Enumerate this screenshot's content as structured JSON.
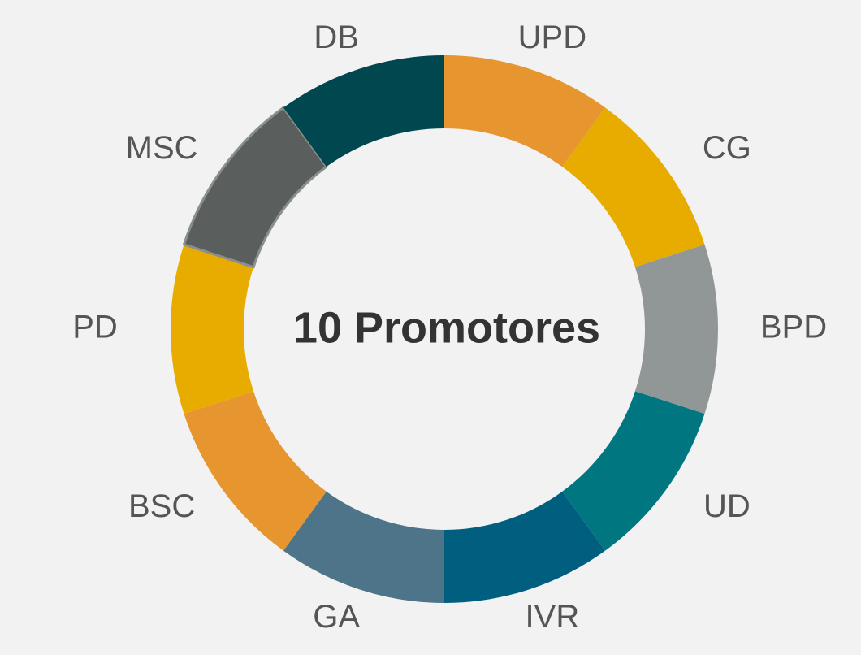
{
  "chart_data": {
    "type": "donut",
    "title": "10 Promotores",
    "categories": [
      "UPD",
      "CG",
      "BPD",
      "UD",
      "IVR",
      "GA",
      "BSC",
      "PD",
      "MSC",
      "DB"
    ],
    "values": [
      1,
      1,
      1,
      1,
      1,
      1,
      1,
      1,
      1,
      1
    ],
    "colors": [
      "#e6952f",
      "#e8ac00",
      "#919797",
      "#007780",
      "#005e7f",
      "#4e748a",
      "#e6952f",
      "#e8ac00",
      "#5a5f5e",
      "#00474f"
    ]
  }
}
